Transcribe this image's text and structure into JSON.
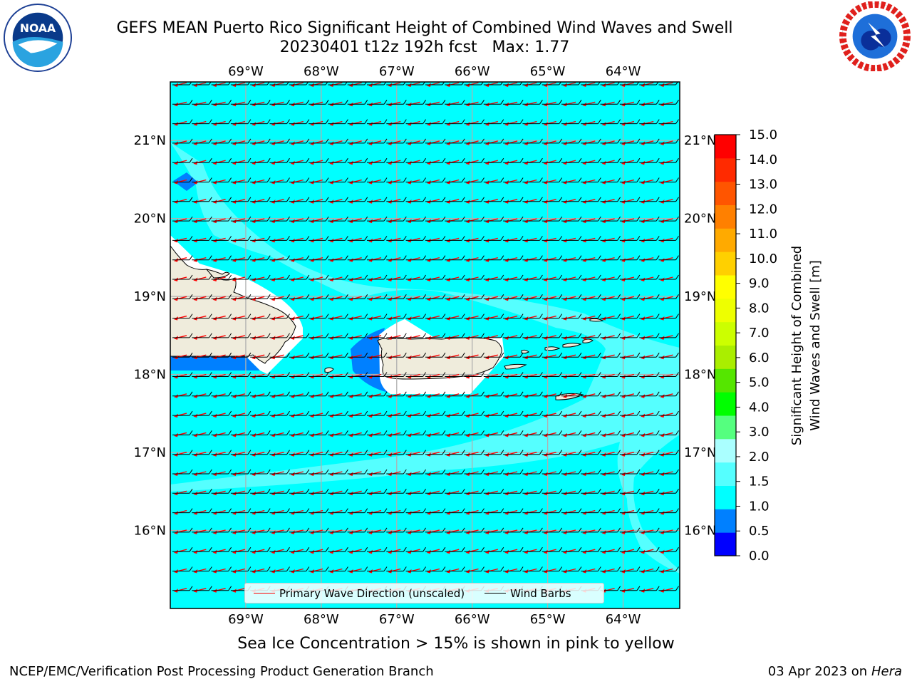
{
  "header": {
    "title_line1": "GEFS MEAN Puerto Rico Significant Height of Combined Wind Waves and Swell",
    "title_line2": "20230401 t12z 192h fcst   Max: 1.77"
  },
  "logos": {
    "noaa": {
      "icon": "noaa-logo-icon",
      "text": "NOAA"
    },
    "nws": {
      "icon": "nws-logo-icon"
    }
  },
  "map": {
    "lon_labels": [
      "69°W",
      "68°W",
      "67°W",
      "66°W",
      "65°W",
      "64°W"
    ],
    "lat_labels": [
      "21°N",
      "20°N",
      "19°N",
      "18°N",
      "17°N",
      "16°N"
    ],
    "lon_values": [
      -69,
      -68,
      -67,
      -66,
      -65,
      -64
    ],
    "lat_values": [
      21,
      20,
      19,
      18,
      17,
      16
    ],
    "lon_range": [
      -70,
      -63.25
    ],
    "lat_range": [
      15,
      21.75
    ],
    "colors": {
      "ocean_main": "#00ffff",
      "ocean_light": "#55ffff",
      "ocean_dark": "#0080ff",
      "land": "#efecdc",
      "gap": "#ffffff",
      "wave_arrow": "#ff0000",
      "wind_barb": "#000000"
    }
  },
  "legend": {
    "primary_wave": "Primary Wave Direction (unscaled)",
    "wind_barbs": "Wind Barbs"
  },
  "colorbar": {
    "label_line1": "Significant Height of Combined",
    "label_line2": "Wind Waves and Swell [m]",
    "ticks": [
      "0.0",
      "0.5",
      "1.0",
      "1.5",
      "2.0",
      "3.0",
      "4.0",
      "5.0",
      "6.0",
      "7.0",
      "8.0",
      "9.0",
      "10.0",
      "11.0",
      "12.0",
      "13.0",
      "14.0",
      "15.0"
    ],
    "colors": [
      "#0000ff",
      "#0080ff",
      "#00ffff",
      "#55ffff",
      "#aaffff",
      "#55ff7f",
      "#00ff00",
      "#55e600",
      "#aaee00",
      "#ccff00",
      "#eeff00",
      "#ffff00",
      "#ffd000",
      "#ffaa00",
      "#ff8000",
      "#ff5500",
      "#ff2a00",
      "#ff0000"
    ]
  },
  "footer": {
    "sea_ice_note": "Sea Ice Concentration > 15% is shown in pink to yellow",
    "left": "NCEP/EMC/Verification Post Processing Product Generation Branch",
    "date": "03 Apr 2023 on ",
    "host": "Hera"
  }
}
